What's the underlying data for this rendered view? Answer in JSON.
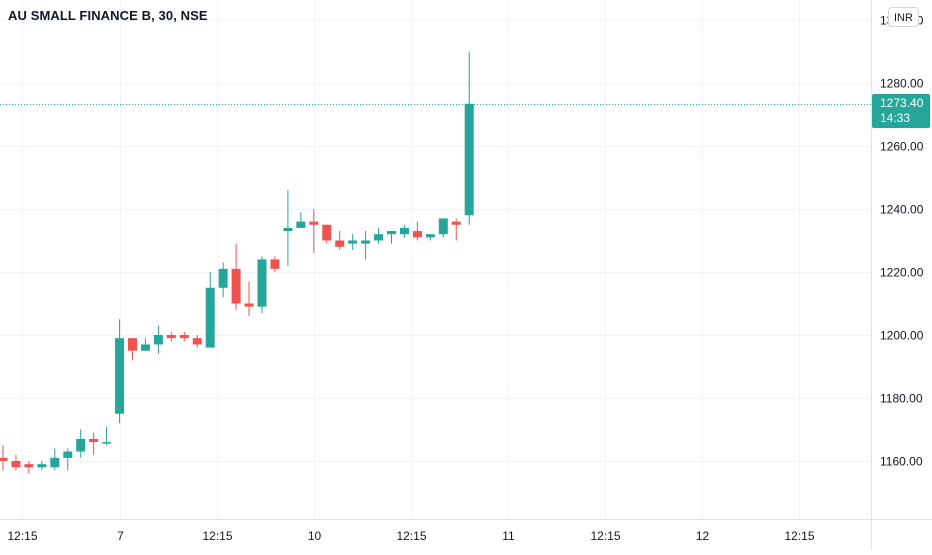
{
  "header": {
    "symbol_title": "AU SMALL FINANCE B, 30, NSE",
    "currency_label": "INR"
  },
  "last_price": {
    "value": "1273.40",
    "countdown": "14:33"
  },
  "colors": {
    "up": "#26a69a",
    "down": "#ef5350",
    "grid": "#f0f3fa",
    "axis_text": "#131722"
  },
  "chart_data": {
    "type": "candlestick",
    "title": "AU SMALL FINANCE B, 30, NSE",
    "grid": true,
    "price_scale_position": "right",
    "ylim": [
      1140,
      1300
    ],
    "y_ticks": [
      1160,
      1180,
      1200,
      1220,
      1240,
      1260,
      1280,
      1300
    ],
    "y_tick_labels": [
      "1160.00",
      "1180.00",
      "1200.00",
      "1220.00",
      "1240.00",
      "1260.00",
      "1280.00",
      "1300.00"
    ],
    "x_ticks": [
      {
        "index": 1.5,
        "label": "12:15"
      },
      {
        "index": 9,
        "label": "7"
      },
      {
        "index": 16.5,
        "label": "12:15"
      },
      {
        "index": 24,
        "label": "10"
      },
      {
        "index": 31.5,
        "label": "12:15"
      },
      {
        "index": 39,
        "label": "11"
      },
      {
        "index": 46.5,
        "label": "12:15"
      },
      {
        "index": 54,
        "label": "12"
      },
      {
        "index": 61.5,
        "label": "12:15"
      }
    ],
    "last_price": 1273.4,
    "candles": [
      {
        "o": 1161,
        "h": 1165,
        "l": 1157,
        "c": 1160
      },
      {
        "o": 1160,
        "h": 1162,
        "l": 1157,
        "c": 1158
      },
      {
        "o": 1159,
        "h": 1160,
        "l": 1156,
        "c": 1158
      },
      {
        "o": 1158,
        "h": 1160,
        "l": 1157,
        "c": 1159
      },
      {
        "o": 1158,
        "h": 1164,
        "l": 1157,
        "c": 1161
      },
      {
        "o": 1161,
        "h": 1164,
        "l": 1157,
        "c": 1163
      },
      {
        "o": 1163,
        "h": 1170,
        "l": 1161,
        "c": 1167
      },
      {
        "o": 1167,
        "h": 1169,
        "l": 1162,
        "c": 1166
      },
      {
        "o": 1166,
        "h": 1171,
        "l": 1165,
        "c": 1166
      },
      {
        "o": 1175,
        "h": 1205,
        "l": 1172,
        "c": 1199
      },
      {
        "o": 1199,
        "h": 1199,
        "l": 1192,
        "c": 1195
      },
      {
        "o": 1195,
        "h": 1199,
        "l": 1195,
        "c": 1197
      },
      {
        "o": 1197,
        "h": 1203,
        "l": 1194,
        "c": 1200
      },
      {
        "o": 1200,
        "h": 1201,
        "l": 1198,
        "c": 1199
      },
      {
        "o": 1200,
        "h": 1201,
        "l": 1198,
        "c": 1199
      },
      {
        "o": 1199,
        "h": 1200,
        "l": 1196,
        "c": 1197
      },
      {
        "o": 1196,
        "h": 1220,
        "l": 1196,
        "c": 1215
      },
      {
        "o": 1215,
        "h": 1223,
        "l": 1212,
        "c": 1221
      },
      {
        "o": 1221,
        "h": 1229,
        "l": 1208,
        "c": 1210
      },
      {
        "o": 1210,
        "h": 1217,
        "l": 1206,
        "c": 1209
      },
      {
        "o": 1209,
        "h": 1225,
        "l": 1207,
        "c": 1224
      },
      {
        "o": 1224,
        "h": 1225,
        "l": 1220,
        "c": 1221
      },
      {
        "o": 1233,
        "h": 1246,
        "l": 1222,
        "c": 1234
      },
      {
        "o": 1234,
        "h": 1239,
        "l": 1234,
        "c": 1236
      },
      {
        "o": 1236,
        "h": 1240,
        "l": 1226,
        "c": 1235
      },
      {
        "o": 1235,
        "h": 1235,
        "l": 1229,
        "c": 1230
      },
      {
        "o": 1230,
        "h": 1233,
        "l": 1227,
        "c": 1228
      },
      {
        "o": 1229,
        "h": 1232,
        "l": 1227,
        "c": 1230
      },
      {
        "o": 1229,
        "h": 1233,
        "l": 1224,
        "c": 1230
      },
      {
        "o": 1230,
        "h": 1234,
        "l": 1229,
        "c": 1232
      },
      {
        "o": 1232,
        "h": 1233,
        "l": 1229,
        "c": 1233
      },
      {
        "o": 1232,
        "h": 1235,
        "l": 1231,
        "c": 1234
      },
      {
        "o": 1233,
        "h": 1236,
        "l": 1230,
        "c": 1231
      },
      {
        "o": 1231,
        "h": 1232,
        "l": 1230,
        "c": 1232
      },
      {
        "o": 1232,
        "h": 1237,
        "l": 1231,
        "c": 1237
      },
      {
        "o": 1236,
        "h": 1237,
        "l": 1230,
        "c": 1235
      },
      {
        "o": 1238,
        "h": 1290,
        "l": 1235,
        "c": 1273.4
      }
    ]
  }
}
